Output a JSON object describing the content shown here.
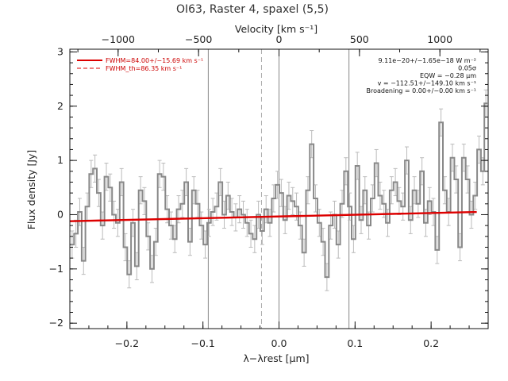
{
  "chart_data": {
    "type": "line",
    "title": "OI63, Raster 4, spaxel (5,5)",
    "xlabel": "λ−λrest [μm]",
    "ylabel": "Flux density [Jy]",
    "top_xlabel": "Velocity [km s⁻¹]",
    "xlim": [
      -0.275,
      0.275
    ],
    "ylim": [
      -2.1,
      3.05
    ],
    "velocity_lim": [
      -1300,
      1300
    ],
    "x_ticks": [
      {
        "value": -0.2,
        "label": "−0.2"
      },
      {
        "value": -0.1,
        "label": "−0.1"
      },
      {
        "value": 0.0,
        "label": "0.0"
      },
      {
        "value": 0.1,
        "label": "0.1"
      },
      {
        "value": 0.2,
        "label": "0.2"
      }
    ],
    "y_ticks": [
      {
        "value": -2,
        "label": "−2"
      },
      {
        "value": -1,
        "label": "−1"
      },
      {
        "value": 0,
        "label": "0"
      },
      {
        "value": 1,
        "label": "1"
      },
      {
        "value": 2,
        "label": "2"
      },
      {
        "value": 3,
        "label": "3"
      }
    ],
    "velocity_ticks": [
      {
        "value": -1000,
        "label": "−1000"
      },
      {
        "value": -500,
        "label": "−500"
      },
      {
        "value": 0,
        "label": "0"
      },
      {
        "value": 500,
        "label": "500"
      },
      {
        "value": 1000,
        "label": "1000"
      }
    ],
    "vertical_lines": [
      {
        "x": -0.093,
        "style": "solid",
        "color": "#888888"
      },
      {
        "x": -0.023,
        "style": "dashed",
        "color": "#aaaaaa"
      },
      {
        "x": 0.0,
        "style": "solid",
        "color": "#888888"
      },
      {
        "x": 0.092,
        "style": "solid",
        "color": "#888888"
      }
    ],
    "legend": {
      "placement": "top-left",
      "entries": [
        {
          "label": "FWHM=84.00+/−15.69 km s⁻¹",
          "style": "solid",
          "color": "#dd0000"
        },
        {
          "label": "FWHM_th=86.35 km s⁻¹",
          "style": "dashed",
          "color": "#dd0000"
        }
      ]
    },
    "annotations": [
      "9.11e−20+/−1.65e−18 W m⁻²",
      "0.05σ",
      "EQW = −0.28 μm",
      "v = −112.51+/−149.10 km s⁻¹",
      "Broadening = 0.00+/−0.00 km s⁻¹"
    ],
    "fit_line": {
      "color": "#dd0000",
      "x": [
        -0.275,
        0.26
      ],
      "y": [
        -0.12,
        0.05
      ]
    },
    "series": [
      {
        "style": "histogram",
        "color": "#888888",
        "x": [
          -0.272,
          -0.267,
          -0.262,
          -0.257,
          -0.252,
          -0.247,
          -0.242,
          -0.237,
          -0.232,
          -0.227,
          -0.222,
          -0.217,
          -0.212,
          -0.207,
          -0.202,
          -0.197,
          -0.192,
          -0.187,
          -0.182,
          -0.177,
          -0.172,
          -0.167,
          -0.162,
          -0.157,
          -0.152,
          -0.147,
          -0.142,
          -0.137,
          -0.132,
          -0.127,
          -0.122,
          -0.117,
          -0.112,
          -0.107,
          -0.102,
          -0.097,
          -0.092,
          -0.087,
          -0.082,
          -0.077,
          -0.072,
          -0.067,
          -0.062,
          -0.057,
          -0.052,
          -0.047,
          -0.042,
          -0.037,
          -0.032,
          -0.027,
          -0.022,
          -0.017,
          -0.012,
          -0.007,
          -0.002,
          0.003,
          0.008,
          0.013,
          0.018,
          0.023,
          0.028,
          0.033,
          0.038,
          0.043,
          0.048,
          0.053,
          0.058,
          0.063,
          0.068,
          0.073,
          0.078,
          0.083,
          0.088,
          0.093,
          0.098,
          0.103,
          0.108,
          0.113,
          0.118,
          0.123,
          0.128,
          0.133,
          0.138,
          0.143,
          0.148,
          0.153,
          0.158,
          0.163,
          0.168,
          0.173,
          0.178,
          0.183,
          0.188,
          0.193,
          0.198,
          0.203,
          0.208,
          0.213,
          0.218,
          0.223,
          0.228,
          0.233,
          0.238,
          0.243,
          0.248,
          0.253,
          0.258,
          0.263,
          0.268,
          0.272
        ],
        "y": [
          -0.55,
          -0.35,
          0.05,
          -0.85,
          0.15,
          0.75,
          0.85,
          0.4,
          -0.2,
          0.7,
          0.5,
          0.0,
          -0.15,
          0.6,
          -0.6,
          -1.1,
          -0.15,
          -0.95,
          0.45,
          0.25,
          -0.4,
          -1.0,
          -0.5,
          0.75,
          0.7,
          0.1,
          -0.2,
          -0.45,
          0.1,
          0.2,
          0.6,
          -0.5,
          0.45,
          0.2,
          -0.2,
          -0.55,
          -0.15,
          0.05,
          0.15,
          0.6,
          0.0,
          0.35,
          0.05,
          -0.05,
          0.1,
          0.0,
          -0.15,
          -0.35,
          -0.45,
          0.0,
          -0.3,
          0.1,
          -0.15,
          0.3,
          0.55,
          0.4,
          -0.1,
          0.35,
          0.25,
          0.15,
          -0.2,
          -0.7,
          0.45,
          1.3,
          0.3,
          -0.15,
          -0.5,
          -1.15,
          -0.2,
          0.0,
          -0.55,
          0.2,
          0.8,
          0.15,
          -0.45,
          0.9,
          -0.1,
          0.45,
          -0.2,
          0.3,
          0.95,
          0.35,
          0.2,
          -0.15,
          0.45,
          0.6,
          0.25,
          0.15,
          1.0,
          -0.1,
          0.45,
          0.2,
          0.8,
          -0.15,
          0.25,
          0.05,
          -0.65,
          1.7,
          0.45,
          0.05,
          1.05,
          0.65,
          -0.6,
          1.05,
          0.65,
          0.0,
          0.35,
          1.2,
          0.8,
          2.05
        ],
        "err": [
          0.25,
          0.25,
          0.25,
          0.25,
          0.25,
          0.25,
          0.25,
          0.25,
          0.25,
          0.25,
          0.25,
          0.25,
          0.25,
          0.25,
          0.25,
          0.25,
          0.25,
          0.25,
          0.25,
          0.25,
          0.25,
          0.25,
          0.25,
          0.25,
          0.25,
          0.25,
          0.25,
          0.25,
          0.25,
          0.25,
          0.25,
          0.25,
          0.25,
          0.25,
          0.25,
          0.25,
          0.25,
          0.25,
          0.25,
          0.25,
          0.25,
          0.25,
          0.25,
          0.25,
          0.25,
          0.25,
          0.25,
          0.25,
          0.25,
          0.25,
          0.25,
          0.25,
          0.25,
          0.25,
          0.25,
          0.25,
          0.25,
          0.25,
          0.25,
          0.25,
          0.25,
          0.25,
          0.25,
          0.25,
          0.25,
          0.25,
          0.25,
          0.25,
          0.25,
          0.25,
          0.25,
          0.25,
          0.25,
          0.25,
          0.25,
          0.25,
          0.25,
          0.25,
          0.25,
          0.25,
          0.25,
          0.25,
          0.25,
          0.25,
          0.25,
          0.25,
          0.25,
          0.25,
          0.25,
          0.25,
          0.25,
          0.25,
          0.25,
          0.25,
          0.25,
          0.25,
          0.25,
          0.25,
          0.25,
          0.25,
          0.25,
          0.25,
          0.25,
          0.25,
          0.25,
          0.25,
          0.25,
          0.25,
          0.25,
          0.25
        ]
      }
    ]
  }
}
